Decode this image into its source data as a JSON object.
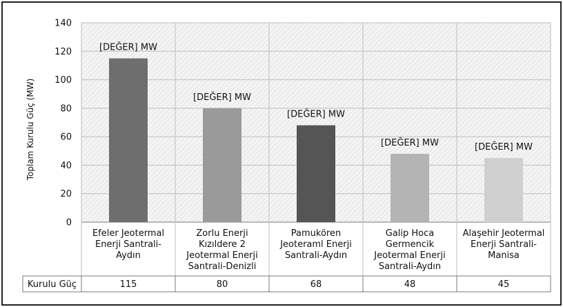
{
  "chart_data": {
    "type": "bar",
    "ylabel": "Toplam Kurulu Güç (MW)",
    "ylim": [
      0,
      140
    ],
    "yticks": [
      0,
      20,
      40,
      60,
      80,
      100,
      120,
      140
    ],
    "grid": true,
    "categories": [
      "Efeler Jeotermal Enerji Santrali-Aydın",
      "Zorlu Enerji Kızıldere 2 Jeotermal Enerji Santrali-Denizli",
      "Pamukören Jeoteraml Enerji Santrali-Aydın",
      "Galip Hoca Germencik Jeotermal Enerji Santrali-Aydın",
      "Alaşehir Jeotermal Enerji Santrali-Manisa"
    ],
    "category_lines": [
      [
        "Efeler Jeotermal",
        "Enerji Santrali-",
        "Aydın"
      ],
      [
        "Zorlu Enerji",
        "Kızıldere 2",
        "Jeotermal Enerji",
        "Santrali-Denizli"
      ],
      [
        "Pamukören",
        "Jeoteraml Enerji",
        "Santrali-Aydın"
      ],
      [
        "Galip Hoca",
        "Germencik",
        "Jeotermal Enerji",
        "Santrali-Aydın"
      ],
      [
        "Alaşehir Jeotermal",
        "Enerji Santrali-",
        "Manisa"
      ]
    ],
    "series": [
      {
        "name": "Kurulu Güç",
        "values": [
          115,
          80,
          68,
          48,
          45
        ]
      }
    ],
    "bar_colors": [
      "#6e6e6e",
      "#9a9a9a",
      "#555555",
      "#b4b4b4",
      "#cfcfcf"
    ],
    "data_label_text": "[DEĞER] MW",
    "table": {
      "row_label": "Kurulu Güç",
      "values": [
        "115",
        "80",
        "68",
        "48",
        "45"
      ]
    }
  }
}
